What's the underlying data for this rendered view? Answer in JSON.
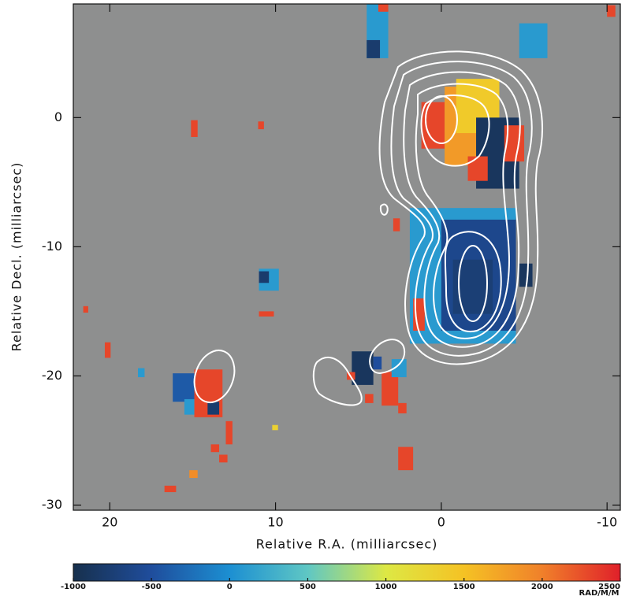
{
  "chart_data": {
    "type": "heatmap",
    "xlabel": "Relative R.A. (milliarcsec)",
    "ylabel": "Relative Decl. (milliarcsec)",
    "xlim": [
      22.2,
      -10.8
    ],
    "ylim": [
      -30.4,
      8.8
    ],
    "xticks": [
      20,
      10,
      0,
      -10
    ],
    "yticks": [
      0,
      -10,
      -20,
      -30
    ],
    "background": "#8e8f8f",
    "patches": {
      "x0": [
        1.2,
        -0.2,
        -0.9,
        -2.1,
        -1.6,
        -3.8,
        1.9,
        0,
        -0.7,
        1.7,
        -4.7,
        4.5,
        4.5,
        3.8,
        -4.7,
        -10,
        15.1,
        11.05,
        11,
        11,
        11,
        21.6,
        20.3,
        18.3,
        16.2,
        14.9,
        15.5,
        14.1,
        13,
        13.9,
        13.4,
        15.2,
        16.7,
        10.2,
        5.4,
        4.1,
        5.7,
        4.6,
        3.6,
        3.0,
        2.6,
        2.6,
        2.9
      ],
      "x1": [
        -0.2,
        -2.1,
        -3.5,
        -4.7,
        -2.8,
        -5,
        -4.5,
        -4.5,
        -3.1,
        1,
        -5.5,
        3.2,
        3.7,
        3.2,
        -6.4,
        -10.5,
        14.7,
        10.7,
        9.8,
        10.4,
        10.1,
        21.3,
        19.95,
        17.9,
        14.9,
        13.2,
        14.9,
        13.4,
        12.6,
        13.4,
        12.9,
        14.7,
        16,
        9.85,
        4.1,
        3.6,
        5.2,
        4.1,
        2.6,
        2.1,
        1.7,
        2.1,
        2.5
      ],
      "y0": [
        1.2,
        2.4,
        3,
        0,
        -3,
        -0.6,
        -7,
        -7.9,
        -11,
        -14,
        -11.3,
        8.8,
        6.0,
        8.8,
        7.3,
        8.7,
        -0.2,
        -0.3,
        -11.7,
        -11.9,
        -15,
        -14.6,
        -17.4,
        -19.4,
        -19.8,
        -19.5,
        -21.8,
        -22.0,
        -23.5,
        -25.3,
        -26.1,
        -27.3,
        -28.5,
        -23.8,
        -18.1,
        -18.5,
        -19.7,
        -21.4,
        -19.7,
        -18.7,
        -25.5,
        -22.1,
        -7.8
      ],
      "y1": [
        -2.4,
        -3.7,
        -1.2,
        -5.5,
        -4.9,
        -3.4,
        -17.5,
        -16.5,
        -15.2,
        -16.5,
        -13.1,
        4.6,
        4.6,
        8.2,
        4.6,
        7.8,
        -1.5,
        -0.9,
        -13.4,
        -12.8,
        -15.4,
        -15.1,
        -18.6,
        -20.1,
        -22,
        -23.2,
        -23.0,
        -23.0,
        -25.3,
        -25.9,
        -26.7,
        -27.9,
        -29,
        -24.2,
        -20.7,
        -19.5,
        -20.3,
        -22.1,
        -22.3,
        -20.1,
        -27.3,
        -22.9,
        -8.8
      ],
      "values": [
        2300,
        1800,
        1400,
        -900,
        2300,
        2300,
        100,
        -600,
        -750,
        2300,
        -900,
        100,
        -800,
        2300,
        100,
        2300,
        2300,
        2300,
        100,
        -800,
        2300,
        2300,
        2300,
        100,
        -400,
        2300,
        100,
        -800,
        2300,
        2300,
        2300,
        1900,
        2300,
        1300,
        -900,
        -500,
        2300,
        2300,
        2300,
        100,
        2300,
        2300,
        2300
      ]
    },
    "colorbar": {
      "label": "RAD/M/M",
      "clim": [
        -1000,
        2500
      ],
      "ticks": [
        -1000,
        -500,
        0,
        500,
        1000,
        1500,
        2000,
        2500
      ],
      "colors": [
        "#17304d",
        "#1f4d9c",
        "#1c8fd2",
        "#5fc7c4",
        "#dde844",
        "#f5c224",
        "#f0802a",
        "#e0202a"
      ]
    }
  }
}
